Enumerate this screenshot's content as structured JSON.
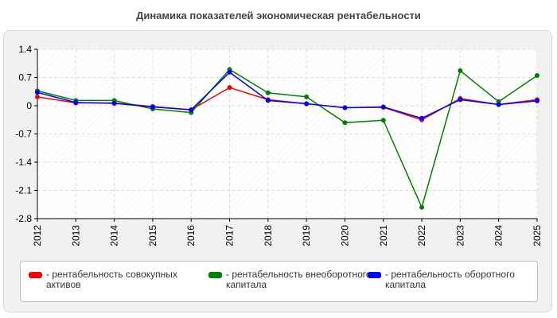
{
  "chart_data": {
    "type": "line",
    "title": "Динамика показателей экономическая рентабельности",
    "x": [
      "2012",
      "2013",
      "2014",
      "2015",
      "2016",
      "2017",
      "2018",
      "2019",
      "2020",
      "2021",
      "2022",
      "2023",
      "2024",
      "2025"
    ],
    "y_ticks": [
      "1.4",
      "0.7",
      "0",
      "-0.7",
      "-1.4",
      "-2.1",
      "-2.8"
    ],
    "ylim": [
      -2.8,
      1.4
    ],
    "grid": true,
    "legend_position": "bottom",
    "series": [
      {
        "name": "- рентабельность совокупных активов",
        "color": "#ff0000",
        "values": [
          0.22,
          0.07,
          0.07,
          -0.02,
          -0.1,
          0.45,
          0.15,
          0.05,
          -0.05,
          -0.04,
          -0.35,
          0.18,
          0.03,
          0.15
        ]
      },
      {
        "name": "- рентабельность внеоборотного капитала",
        "color": "#008000",
        "values": [
          0.37,
          0.13,
          0.13,
          -0.08,
          -0.17,
          0.9,
          0.32,
          0.22,
          -0.42,
          -0.36,
          -2.52,
          0.87,
          0.1,
          0.75
        ]
      },
      {
        "name": "- рентабельность оборотного капитала",
        "color": "#0000ff",
        "values": [
          0.33,
          0.08,
          0.06,
          -0.03,
          -0.1,
          0.83,
          0.13,
          0.05,
          -0.05,
          -0.03,
          -0.31,
          0.15,
          0.03,
          0.12
        ]
      }
    ]
  }
}
